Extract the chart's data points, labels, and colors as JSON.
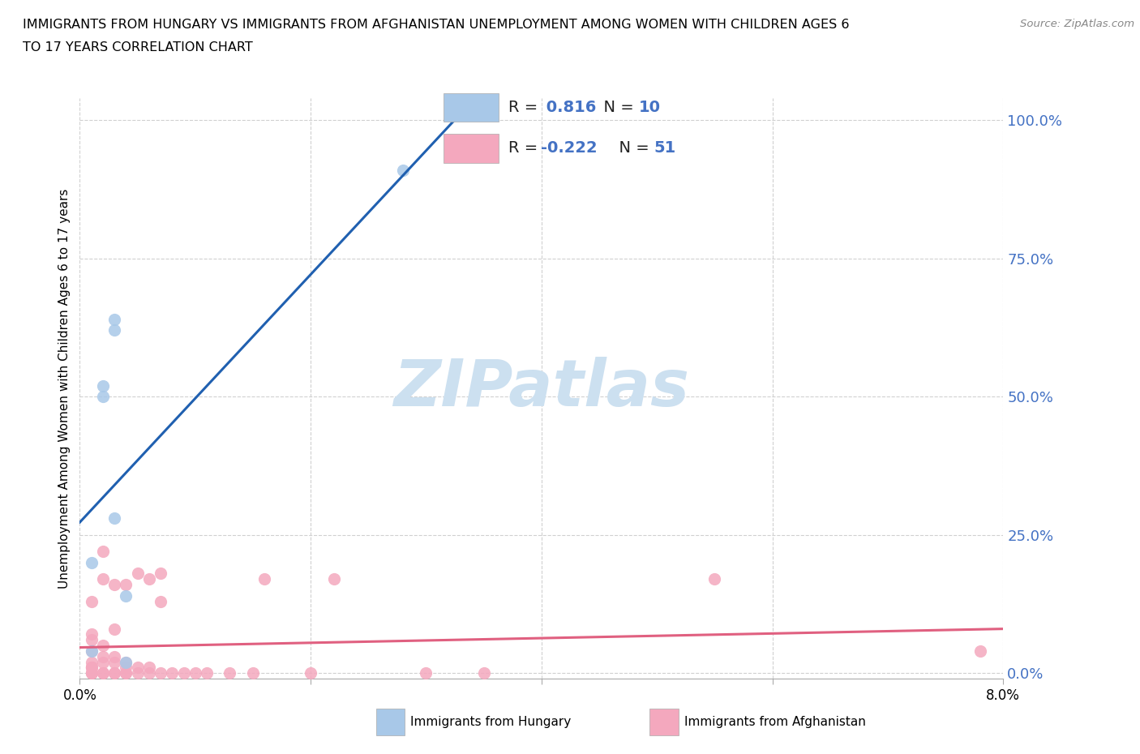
{
  "title_line1": "IMMIGRANTS FROM HUNGARY VS IMMIGRANTS FROM AFGHANISTAN UNEMPLOYMENT AMONG WOMEN WITH CHILDREN AGES 6",
  "title_line2": "TO 17 YEARS CORRELATION CHART",
  "source": "Source: ZipAtlas.com",
  "ylabel": "Unemployment Among Women with Children Ages 6 to 17 years",
  "xlim": [
    0.0,
    0.08
  ],
  "ylim": [
    -0.01,
    1.04
  ],
  "yticks": [
    0.0,
    0.25,
    0.5,
    0.75,
    1.0
  ],
  "ytick_labels": [
    "0.0%",
    "25.0%",
    "50.0%",
    "75.0%",
    "100.0%"
  ],
  "xtick_labels": [
    "0.0%",
    "",
    "",
    "",
    "8.0%"
  ],
  "hungary_R": 0.816,
  "hungary_N": 10,
  "afghanistan_R": -0.222,
  "afghanistan_N": 51,
  "hungary_color": "#a8c8e8",
  "afghanistan_color": "#f4a8be",
  "hungary_line_color": "#2060b0",
  "afghanistan_line_color": "#e06080",
  "legend_value_color": "#4472c4",
  "legend_label_color": "#222222",
  "ytick_color": "#4472c4",
  "watermark_color": "#cce0f0",
  "grid_color": "#d0d0d0",
  "hungary_x": [
    0.001,
    0.001,
    0.002,
    0.002,
    0.003,
    0.003,
    0.003,
    0.004,
    0.004,
    0.028
  ],
  "hungary_y": [
    0.2,
    0.04,
    0.52,
    0.5,
    0.64,
    0.62,
    0.28,
    0.02,
    0.14,
    0.91
  ],
  "afghanistan_x": [
    0.001,
    0.001,
    0.001,
    0.001,
    0.001,
    0.001,
    0.001,
    0.001,
    0.001,
    0.001,
    0.001,
    0.002,
    0.002,
    0.002,
    0.002,
    0.002,
    0.002,
    0.002,
    0.003,
    0.003,
    0.003,
    0.003,
    0.003,
    0.003,
    0.004,
    0.004,
    0.004,
    0.004,
    0.004,
    0.005,
    0.005,
    0.005,
    0.006,
    0.006,
    0.006,
    0.007,
    0.007,
    0.007,
    0.008,
    0.009,
    0.01,
    0.011,
    0.013,
    0.015,
    0.016,
    0.02,
    0.022,
    0.03,
    0.035,
    0.055,
    0.078
  ],
  "afghanistan_y": [
    0.0,
    0.0,
    0.0,
    0.01,
    0.01,
    0.01,
    0.02,
    0.04,
    0.06,
    0.07,
    0.13,
    0.0,
    0.0,
    0.02,
    0.03,
    0.05,
    0.17,
    0.22,
    0.0,
    0.0,
    0.02,
    0.03,
    0.08,
    0.16,
    0.0,
    0.0,
    0.01,
    0.02,
    0.16,
    0.0,
    0.01,
    0.18,
    0.0,
    0.01,
    0.17,
    0.0,
    0.13,
    0.18,
    0.0,
    0.0,
    0.0,
    0.0,
    0.0,
    0.0,
    0.17,
    0.0,
    0.17,
    0.0,
    0.0,
    0.17,
    0.04
  ]
}
